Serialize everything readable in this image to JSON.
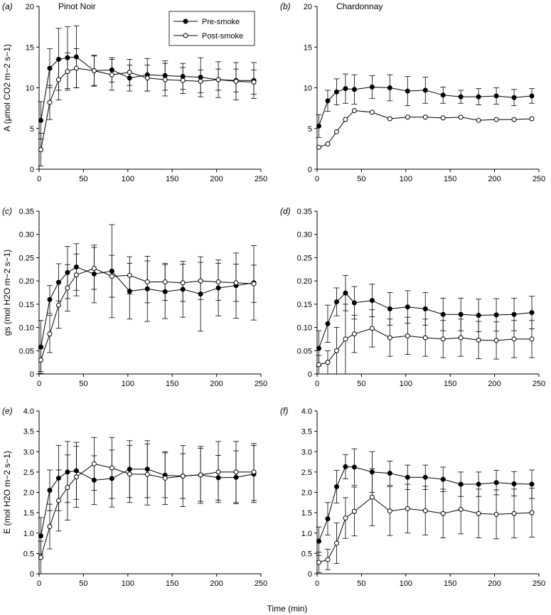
{
  "chart_data": [
    {
      "type": "line",
      "panel_label": "(a)",
      "title": "Pinot Noir",
      "ylabel": "A (μmol CO2 m−2 s−1)",
      "xlabel": "",
      "xlim": [
        0,
        250
      ],
      "ylim": [
        0,
        20
      ],
      "xticks": [
        0,
        50,
        100,
        150,
        200,
        250
      ],
      "yticks": [
        0,
        5,
        10,
        15,
        20
      ],
      "x": [
        2,
        12,
        22,
        32,
        42,
        62,
        82,
        102,
        122,
        142,
        162,
        182,
        202,
        222,
        242
      ],
      "legend_position": "top-right",
      "series": [
        {
          "name": "Pre-smoke",
          "marker": "filled-circle",
          "values": [
            6.0,
            12.4,
            13.5,
            13.7,
            13.8,
            12.1,
            12.2,
            11.2,
            11.6,
            11.5,
            11.4,
            11.3,
            11.0,
            10.9,
            10.9
          ],
          "errors": [
            2.3,
            2.4,
            3.8,
            3.8,
            3.8,
            1.8,
            1.5,
            1.6,
            2.0,
            1.8,
            1.6,
            2.4,
            2.2,
            1.4,
            2.2
          ]
        },
        {
          "name": "Post-smoke",
          "marker": "open-circle",
          "values": [
            2.4,
            8.2,
            11.0,
            12.0,
            12.4,
            12.1,
            11.6,
            11.9,
            11.2,
            11.0,
            10.9,
            10.8,
            11.0,
            10.8,
            10.7
          ],
          "errors": [
            2.0,
            2.1,
            2.5,
            2.3,
            2.4,
            1.9,
            1.9,
            1.6,
            1.6,
            2.0,
            1.6,
            1.4,
            1.3,
            2.3,
            1.5
          ]
        }
      ]
    },
    {
      "type": "line",
      "panel_label": "(b)",
      "title": "Chardonnay",
      "ylabel": "",
      "xlabel": "",
      "xlim": [
        0,
        250
      ],
      "ylim": [
        0,
        20
      ],
      "xticks": [
        0,
        50,
        100,
        150,
        200,
        250
      ],
      "yticks": [
        0,
        5,
        10,
        15,
        20
      ],
      "x": [
        2,
        12,
        22,
        32,
        42,
        62,
        82,
        102,
        122,
        142,
        162,
        182,
        202,
        222,
        242
      ],
      "series": [
        {
          "name": "Pre-smoke",
          "marker": "filled-circle",
          "values": [
            5.3,
            8.4,
            9.5,
            9.9,
            9.8,
            10.1,
            10.0,
            9.6,
            9.7,
            9.1,
            8.9,
            8.9,
            9.0,
            8.8,
            9.0
          ],
          "errors": [
            1.4,
            1.3,
            1.6,
            1.8,
            1.8,
            1.4,
            1.6,
            1.8,
            1.6,
            1.0,
            0.8,
            1.0,
            1.0,
            1.0,
            0.9
          ]
        },
        {
          "name": "Post-smoke",
          "marker": "open-circle",
          "values": [
            2.7,
            3.1,
            4.6,
            6.1,
            7.2,
            7.0,
            6.2,
            6.4,
            6.4,
            6.3,
            6.4,
            6.0,
            6.1,
            6.1,
            6.2
          ]
        }
      ]
    },
    {
      "type": "line",
      "panel_label": "(c)",
      "title": "",
      "ylabel": "gs (mol H2O m−2 s−1)",
      "xlabel": "",
      "xlim": [
        0,
        250
      ],
      "ylim": [
        0,
        0.35
      ],
      "xticks": [
        0,
        50,
        100,
        150,
        200,
        250
      ],
      "yticks": [
        0,
        0.05,
        0.1,
        0.15,
        0.2,
        0.25,
        0.3,
        0.35
      ],
      "x": [
        2,
        12,
        22,
        32,
        42,
        62,
        82,
        102,
        122,
        142,
        162,
        182,
        202,
        222,
        242
      ],
      "series": [
        {
          "name": "Pre-smoke",
          "marker": "filled-circle",
          "values": [
            0.058,
            0.16,
            0.197,
            0.218,
            0.23,
            0.215,
            0.221,
            0.178,
            0.183,
            0.177,
            0.182,
            0.172,
            0.185,
            0.19,
            0.196
          ],
          "errors": [
            0.057,
            0.03,
            0.04,
            0.056,
            0.05,
            0.062,
            0.1,
            0.06,
            0.07,
            0.058,
            0.06,
            0.08,
            0.06,
            0.07,
            0.08
          ]
        },
        {
          "name": "Post-smoke",
          "marker": "open-circle",
          "values": [
            0.03,
            0.086,
            0.148,
            0.185,
            0.213,
            0.227,
            0.21,
            0.212,
            0.198,
            0.198,
            0.196,
            0.2,
            0.198,
            0.196,
            0.194
          ],
          "errors": [
            0.025,
            0.04,
            0.05,
            0.05,
            0.045,
            0.045,
            0.045,
            0.04,
            0.045,
            0.04,
            0.04,
            0.04,
            0.04,
            0.04,
            0.04
          ]
        }
      ]
    },
    {
      "type": "line",
      "panel_label": "(d)",
      "title": "",
      "ylabel": "",
      "xlabel": "",
      "xlim": [
        0,
        250
      ],
      "ylim": [
        0,
        0.35
      ],
      "xticks": [
        0,
        50,
        100,
        150,
        200,
        250
      ],
      "yticks": [
        0,
        0.05,
        0.1,
        0.15,
        0.2,
        0.25,
        0.3,
        0.35
      ],
      "x": [
        2,
        12,
        22,
        32,
        42,
        62,
        82,
        102,
        122,
        142,
        162,
        182,
        202,
        222,
        242
      ],
      "series": [
        {
          "name": "Pre-smoke",
          "marker": "filled-circle",
          "values": [
            0.055,
            0.108,
            0.155,
            0.174,
            0.153,
            0.158,
            0.14,
            0.144,
            0.14,
            0.128,
            0.128,
            0.126,
            0.127,
            0.128,
            0.132
          ],
          "errors": [
            0.038,
            0.04,
            0.03,
            0.038,
            0.035,
            0.035,
            0.035,
            0.035,
            0.035,
            0.035,
            0.035,
            0.035,
            0.035,
            0.035,
            0.035
          ]
        },
        {
          "name": "Post-smoke",
          "marker": "open-circle",
          "values": [
            0.02,
            0.025,
            0.05,
            0.075,
            0.086,
            0.098,
            0.078,
            0.082,
            0.078,
            0.075,
            0.078,
            0.073,
            0.072,
            0.075,
            0.075
          ],
          "errors": [
            0.02,
            0.025,
            0.05,
            0.075,
            0.04,
            0.04,
            0.04,
            0.04,
            0.04,
            0.04,
            0.04,
            0.04,
            0.04,
            0.04,
            0.04
          ]
        }
      ]
    },
    {
      "type": "line",
      "panel_label": "(e)",
      "title": "",
      "ylabel": "E (mol H2O m−2 s−1)",
      "xlabel": "",
      "xlim": [
        0,
        250
      ],
      "ylim": [
        0,
        4.0
      ],
      "xticks": [
        0,
        50,
        100,
        150,
        200,
        250
      ],
      "yticks": [
        0,
        0.5,
        1.0,
        1.5,
        2.0,
        2.5,
        3.0,
        3.5,
        4.0
      ],
      "x": [
        2,
        12,
        22,
        32,
        42,
        62,
        82,
        102,
        122,
        142,
        162,
        182,
        202,
        222,
        242
      ],
      "series": [
        {
          "name": "Pre-smoke",
          "marker": "filled-circle",
          "values": [
            0.93,
            2.05,
            2.35,
            2.5,
            2.53,
            2.3,
            2.34,
            2.57,
            2.57,
            2.42,
            2.4,
            2.43,
            2.36,
            2.37,
            2.45
          ],
          "errors": [
            0.45,
            0.5,
            0.8,
            0.75,
            0.7,
            0.6,
            0.7,
            0.7,
            0.7,
            0.55,
            0.55,
            0.65,
            0.55,
            0.65,
            0.7
          ]
        },
        {
          "name": "Post-smoke",
          "marker": "open-circle",
          "values": [
            0.4,
            1.16,
            1.8,
            2.12,
            2.38,
            2.7,
            2.6,
            2.45,
            2.44,
            2.35,
            2.4,
            2.43,
            2.5,
            2.5,
            2.5
          ],
          "errors": [
            0.4,
            0.55,
            0.75,
            0.8,
            0.75,
            0.65,
            0.75,
            0.7,
            0.75,
            0.65,
            0.75,
            0.7,
            0.75,
            0.75,
            0.7
          ]
        }
      ]
    },
    {
      "type": "line",
      "panel_label": "(f)",
      "title": "",
      "ylabel": "",
      "xlabel": "",
      "xlim": [
        0,
        250
      ],
      "ylim": [
        0,
        4.0
      ],
      "xticks": [
        0,
        50,
        100,
        150,
        200,
        250
      ],
      "yticks": [
        0,
        0.5,
        1.0,
        1.5,
        2.0,
        2.5,
        3.0,
        3.5,
        4.0
      ],
      "x": [
        2,
        12,
        22,
        32,
        42,
        62,
        82,
        102,
        122,
        142,
        162,
        182,
        202,
        222,
        242
      ],
      "series": [
        {
          "name": "Pre-smoke",
          "marker": "filled-circle",
          "values": [
            0.8,
            1.35,
            2.14,
            2.63,
            2.62,
            2.5,
            2.47,
            2.37,
            2.37,
            2.32,
            2.2,
            2.2,
            2.24,
            2.21,
            2.2
          ],
          "errors": [
            0.35,
            0.4,
            0.4,
            0.3,
            0.45,
            0.5,
            0.3,
            0.3,
            0.3,
            0.3,
            0.3,
            0.3,
            0.3,
            0.3,
            0.35
          ]
        },
        {
          "name": "Post-smoke",
          "marker": "open-circle",
          "values": [
            0.28,
            0.35,
            0.75,
            1.37,
            1.53,
            1.88,
            1.54,
            1.6,
            1.55,
            1.48,
            1.58,
            1.48,
            1.46,
            1.48,
            1.5
          ],
          "errors": [
            0.25,
            0.25,
            0.5,
            0.5,
            0.6,
            0.7,
            0.6,
            0.6,
            0.6,
            0.6,
            0.6,
            0.6,
            0.6,
            0.6,
            0.6
          ]
        }
      ]
    }
  ],
  "figure": {
    "xlabel": "Time (min)",
    "legend": [
      "Pre-smoke",
      "Post-smoke"
    ]
  }
}
